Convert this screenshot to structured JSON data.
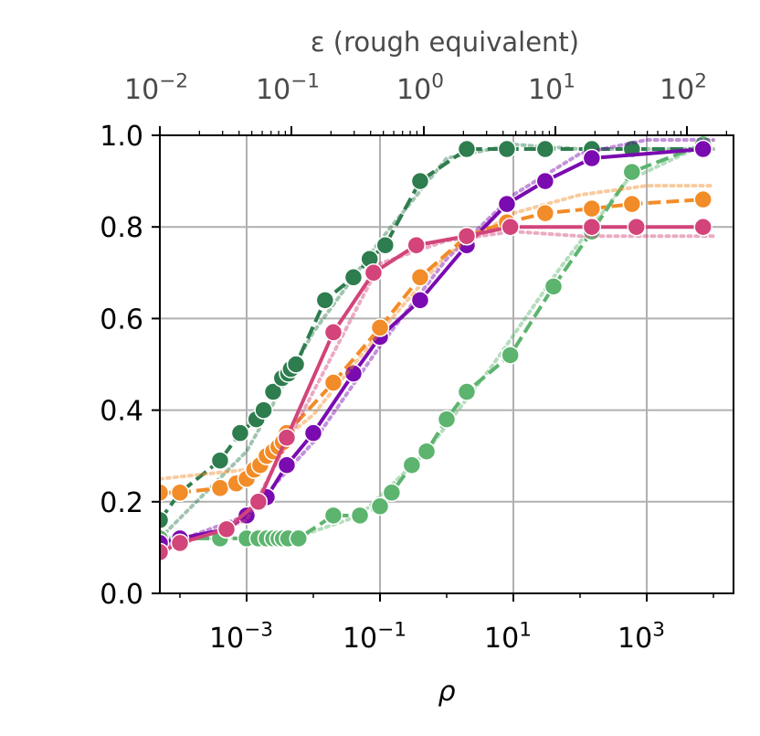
{
  "chart_data": {
    "type": "line",
    "xlabel": "ρ",
    "top_axis_label": "ε (rough equivalent)",
    "ylabel": "",
    "x_scale": "log",
    "xlim": [
      5e-05,
      20000
    ],
    "ylim": [
      0,
      1
    ],
    "grid": true,
    "legend": "none",
    "x_ticks": [
      {
        "value": 0.001,
        "base": "10",
        "exp": "−3"
      },
      {
        "value": 0.1,
        "base": "10",
        "exp": "−1"
      },
      {
        "value": 10,
        "base": "10",
        "exp": "1"
      },
      {
        "value": 1000,
        "base": "10",
        "exp": "3"
      }
    ],
    "top_ticks": [
      {
        "base": "10",
        "exp": "−2"
      },
      {
        "base": "10",
        "exp": "−1"
      },
      {
        "base": "10",
        "exp": "0"
      },
      {
        "base": "10",
        "exp": "1"
      },
      {
        "base": "10",
        "exp": "2"
      }
    ],
    "y_ticks": [
      {
        "value": 0.0,
        "label": "0.0"
      },
      {
        "value": 0.2,
        "label": "0.2"
      },
      {
        "value": 0.4,
        "label": "0.4"
      },
      {
        "value": 0.6,
        "label": "0.6"
      },
      {
        "value": 0.8,
        "label": "0.8"
      },
      {
        "value": 1.0,
        "label": "1.0"
      }
    ],
    "series": [
      {
        "color": "#2e7d4f",
        "line": "dashed",
        "x": [
          5e-05,
          0.0001,
          0.0004,
          0.0008,
          0.0014,
          0.0018,
          0.0025,
          0.0034,
          0.0042,
          0.0046,
          0.0055,
          0.015,
          0.04,
          0.07,
          0.12,
          0.4,
          2,
          8,
          30,
          150,
          600,
          7000
        ],
        "y": [
          0.16,
          0.22,
          0.29,
          0.35,
          0.38,
          0.4,
          0.44,
          0.47,
          0.48,
          0.49,
          0.5,
          0.64,
          0.69,
          0.73,
          0.76,
          0.9,
          0.97,
          0.97,
          0.97,
          0.97,
          0.97,
          0.97
        ],
        "dotted_x": [
          5e-05,
          0.001,
          0.01,
          0.1,
          1,
          10,
          100,
          1000,
          10000
        ],
        "dotted_y": [
          0.12,
          0.31,
          0.57,
          0.77,
          0.95,
          0.98,
          0.97,
          0.97,
          0.97
        ]
      },
      {
        "color": "#5cb46e",
        "line": "dashed",
        "x": [
          5e-05,
          0.0001,
          0.0004,
          0.001,
          0.0015,
          0.002,
          0.0025,
          0.003,
          0.0035,
          0.0042,
          0.006,
          0.02,
          0.05,
          0.1,
          0.15,
          0.3,
          0.5,
          1,
          2,
          9,
          40,
          150,
          600,
          7000
        ],
        "y": [
          0.12,
          0.12,
          0.12,
          0.12,
          0.12,
          0.12,
          0.12,
          0.12,
          0.12,
          0.12,
          0.12,
          0.17,
          0.17,
          0.19,
          0.22,
          0.28,
          0.31,
          0.38,
          0.44,
          0.52,
          0.67,
          0.79,
          0.92,
          0.98
        ],
        "dotted_x": [
          5e-05,
          0.005,
          0.05,
          0.5,
          5,
          50,
          500,
          10000
        ],
        "dotted_y": [
          0.12,
          0.12,
          0.17,
          0.31,
          0.5,
          0.71,
          0.9,
          0.99
        ]
      },
      {
        "color": "#7a0bb0",
        "line": "solid",
        "x": [
          5e-05,
          0.0001,
          0.0005,
          0.001,
          0.002,
          0.004,
          0.01,
          0.04,
          0.1,
          0.4,
          2,
          8,
          30,
          150,
          7000
        ],
        "y": [
          0.11,
          0.12,
          0.14,
          0.17,
          0.21,
          0.28,
          0.35,
          0.48,
          0.56,
          0.64,
          0.76,
          0.85,
          0.9,
          0.95,
          0.97
        ],
        "dotted_x": [
          5e-05,
          0.001,
          0.01,
          0.1,
          1,
          10,
          100,
          1000,
          10000
        ],
        "dotted_y": [
          0.1,
          0.17,
          0.33,
          0.54,
          0.73,
          0.87,
          0.96,
          0.99,
          0.99
        ]
      },
      {
        "color": "#f28c28",
        "line": "dashed",
        "x": [
          5e-05,
          0.0001,
          0.0004,
          0.0007,
          0.001,
          0.0013,
          0.0016,
          0.002,
          0.0025,
          0.003,
          0.0035,
          0.004,
          0.02,
          0.1,
          0.4,
          2,
          8,
          30,
          150,
          600,
          7000
        ],
        "y": [
          0.22,
          0.22,
          0.23,
          0.24,
          0.25,
          0.27,
          0.28,
          0.3,
          0.31,
          0.32,
          0.33,
          0.35,
          0.46,
          0.58,
          0.69,
          0.78,
          0.81,
          0.83,
          0.84,
          0.85,
          0.86
        ],
        "dotted_x": [
          5e-05,
          0.001,
          0.01,
          0.1,
          1,
          10,
          100,
          1000,
          10000
        ],
        "dotted_y": [
          0.25,
          0.27,
          0.39,
          0.57,
          0.74,
          0.83,
          0.87,
          0.89,
          0.89
        ]
      },
      {
        "color": "#d2447a",
        "line": "solid",
        "x": [
          5e-05,
          0.0001,
          0.0005,
          0.0015,
          0.004,
          0.02,
          0.08,
          0.35,
          2,
          9,
          150,
          700,
          7000
        ],
        "y": [
          0.09,
          0.11,
          0.14,
          0.2,
          0.34,
          0.57,
          0.7,
          0.76,
          0.78,
          0.8,
          0.8,
          0.8,
          0.8
        ],
        "dotted_x": [
          5e-05,
          0.001,
          0.01,
          0.1,
          1,
          10,
          100,
          1000,
          10000
        ],
        "dotted_y": [
          0.09,
          0.16,
          0.44,
          0.72,
          0.77,
          0.79,
          0.78,
          0.78,
          0.78
        ]
      }
    ]
  }
}
